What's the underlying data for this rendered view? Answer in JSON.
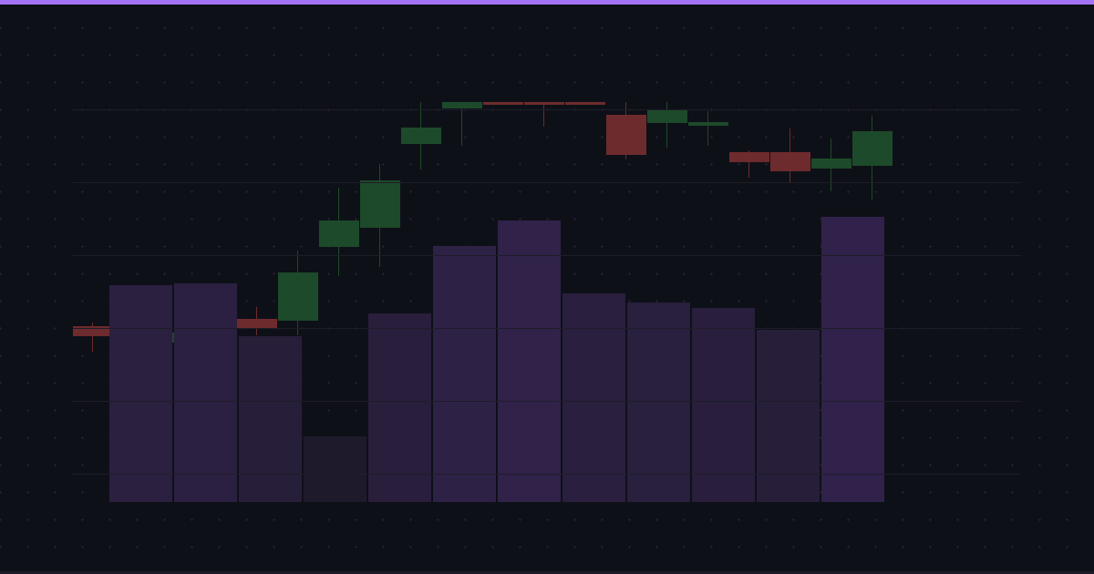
{
  "colors": {
    "background": "#0e1017",
    "accent": "#a374f5",
    "up": "#1d4a2a",
    "down": "#6e2b2d",
    "volume_high": "#30224a",
    "volume_low": "#1f1a2b",
    "grid": "#1e1d28",
    "dots": "#221f33"
  },
  "chart_data": [
    {
      "type": "candlestick",
      "grid": true,
      "ylim": [
        0,
        630
      ],
      "candles": [
        {
          "open": 272,
          "close": 261,
          "high": 276,
          "low": 244
        },
        {
          "open": 260,
          "close": 268,
          "high": 272,
          "low": 256
        },
        {
          "open": 254,
          "close": 265,
          "high": 268,
          "low": 250
        },
        {
          "open": 280,
          "close": 268,
          "high": 284,
          "low": 262
        },
        {
          "open": 280,
          "close": 270,
          "high": 293,
          "low": 262
        },
        {
          "open": 278,
          "close": 331,
          "high": 355,
          "low": 262
        },
        {
          "open": 359,
          "close": 388,
          "high": 424,
          "low": 327
        },
        {
          "open": 380,
          "close": 432,
          "high": 450,
          "low": 337
        },
        {
          "open": 472,
          "close": 490,
          "high": 518,
          "low": 444
        },
        {
          "open": 511,
          "close": 518,
          "high": 518,
          "low": 470
        },
        {
          "open": 518,
          "close": 515,
          "high": 518,
          "low": 515
        },
        {
          "open": 518,
          "close": 515,
          "high": 518,
          "low": 491
        },
        {
          "open": 518,
          "close": 515,
          "high": 518,
          "low": 515
        },
        {
          "open": 504,
          "close": 460,
          "high": 518,
          "low": 455
        },
        {
          "open": 495,
          "close": 509,
          "high": 518,
          "low": 468
        },
        {
          "open": 492,
          "close": 496,
          "high": 508,
          "low": 470
        },
        {
          "open": 463,
          "close": 452,
          "high": 465,
          "low": 435
        },
        {
          "open": 463,
          "close": 442,
          "high": 489,
          "low": 430
        },
        {
          "open": 445,
          "close": 456,
          "high": 478,
          "low": 420
        },
        {
          "open": 448,
          "close": 486,
          "high": 503,
          "low": 411
        }
      ]
    },
    {
      "type": "bar",
      "grid": true,
      "ylim": [
        0,
        551
      ],
      "values": [
        238,
        240,
        182,
        72,
        207,
        281,
        309,
        229,
        219,
        213,
        189,
        313
      ]
    }
  ]
}
